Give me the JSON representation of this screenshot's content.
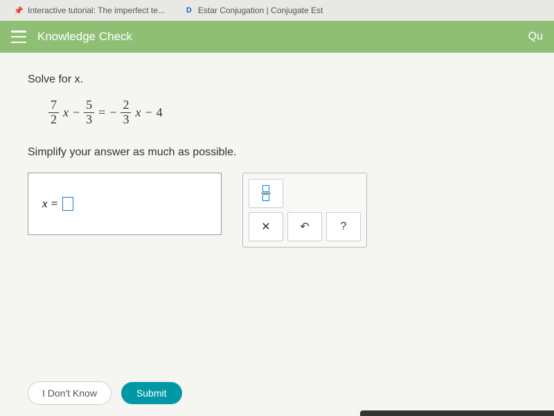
{
  "tabs": {
    "tab1": "Interactive tutorial: The imperfect te...",
    "tab2": "Estar Conjugation | Conjugate Est"
  },
  "header": {
    "title": "Knowledge Check",
    "right": "Qu"
  },
  "problem": {
    "instruction": "Solve for x.",
    "simplify": "Simplify your answer as much as possible.",
    "eq": {
      "f1_num": "7",
      "f1_den": "2",
      "var1": "x",
      "minus1": "−",
      "f2_num": "5",
      "f2_den": "3",
      "equals": "=",
      "neg": "−",
      "f3_num": "2",
      "f3_den": "3",
      "var2": "x",
      "minus2": "−",
      "const": "4"
    },
    "answer_prefix": "x ="
  },
  "footer": {
    "dont_know": "I Don't Know",
    "submit": "Submit"
  }
}
